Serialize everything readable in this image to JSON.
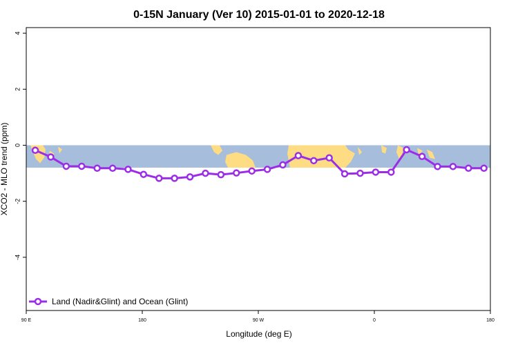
{
  "chart_data": {
    "type": "line",
    "title": "0-15N January (Ver 10)   2015-01-01 to 2020-12-18",
    "xlabel": "Longitude (deg E)",
    "ylabel": "XCO2 - MLO trend (ppm)",
    "xlim": [
      90,
      450
    ],
    "ylim": [
      -5.9,
      4.2
    ],
    "x_ticks": [
      {
        "value": 90,
        "label": "90 E"
      },
      {
        "value": 180,
        "label": "180"
      },
      {
        "value": 270,
        "label": "90 W"
      },
      {
        "value": 360,
        "label": "0"
      },
      {
        "value": 450,
        "label": "180"
      }
    ],
    "y_ticks": [
      {
        "value": 4,
        "label": "4"
      },
      {
        "value": 2,
        "label": "2"
      },
      {
        "value": 0,
        "label": "0"
      },
      {
        "value": -2,
        "label": "-2"
      },
      {
        "value": -4,
        "label": "-4"
      }
    ],
    "map_band": {
      "lat_range": [
        0,
        15
      ],
      "y_range": [
        -0.8,
        0.0
      ],
      "ocean_color": "#a6bddb",
      "land_color": "#fddc84"
    },
    "grid": false,
    "legend_position": "bottom-left",
    "series": [
      {
        "name": "Land (Nadir&Glint) and Ocean (Glint)",
        "color": "#9b2de6",
        "x": [
          97,
          109,
          121,
          133,
          145,
          157,
          169,
          181,
          193,
          205,
          217,
          229,
          241,
          253,
          265,
          277,
          289,
          301,
          313,
          325,
          337,
          349,
          361,
          373,
          385,
          397,
          409,
          421,
          433,
          445
        ],
        "y": [
          -0.18,
          -0.42,
          -0.75,
          -0.75,
          -0.82,
          -0.82,
          -0.86,
          -1.04,
          -1.18,
          -1.18,
          -1.13,
          -1.0,
          -1.05,
          -0.99,
          -0.92,
          -0.86,
          -0.7,
          -0.37,
          -0.55,
          -0.45,
          -1.02,
          -1.0,
          -0.96,
          -0.96,
          -0.16,
          -0.4,
          -0.76,
          -0.76,
          -0.82,
          -0.82
        ]
      }
    ]
  }
}
